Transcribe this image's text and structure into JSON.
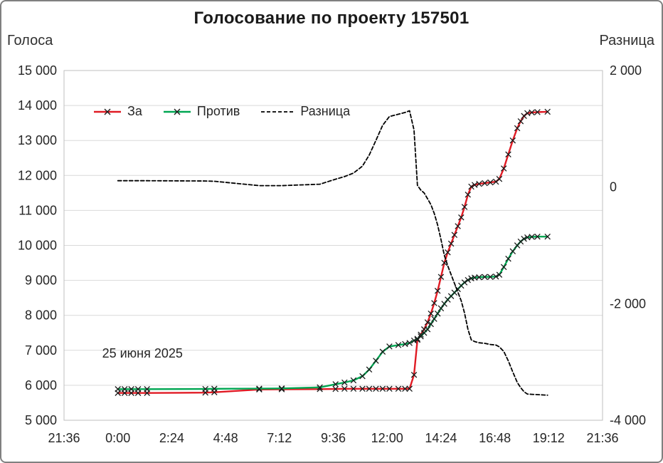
{
  "chart_data": {
    "type": "line",
    "title": "Голосование по проекту 157501",
    "grid": "horizontal",
    "legend_position": "top-inside",
    "x_axis": {
      "range_hours": [
        -2.4,
        21.6
      ],
      "tick_hours": [
        -2.4,
        0,
        2.4,
        4.8,
        7.2,
        9.6,
        12,
        14.4,
        16.8,
        19.2,
        21.6
      ],
      "tick_labels": [
        "21:36",
        "0:00",
        "2:24",
        "4:48",
        "7:12",
        "9:36",
        "12:00",
        "14:24",
        "16:48",
        "19:12",
        "21:36"
      ]
    },
    "left_axis": {
      "title": "Голоса",
      "min": 5000,
      "max": 15000,
      "step": 1000,
      "tick_labels": [
        "15 000",
        "14 000",
        "13 000",
        "12 000",
        "11 000",
        "10 000",
        "9 000",
        "8 000",
        "7 000",
        "6 000",
        "5 000"
      ]
    },
    "right_axis": {
      "title": "Разница",
      "min": -4000,
      "max": 2000,
      "step": 2000,
      "tick_labels": [
        "2 000",
        "0",
        "-2 000",
        "-4 000"
      ]
    },
    "x_hours": [
      0,
      0.3,
      0.6,
      0.9,
      1.3,
      3.9,
      4.3,
      6.3,
      7.3,
      9.0,
      9.7,
      10.1,
      10.5,
      10.9,
      11.2,
      11.5,
      11.8,
      12.1,
      12.5,
      12.8,
      13.0,
      13.2,
      13.35,
      13.5,
      13.65,
      13.8,
      13.95,
      14.1,
      14.25,
      14.4,
      14.55,
      14.7,
      14.85,
      15.0,
      15.15,
      15.3,
      15.45,
      15.6,
      15.75,
      15.9,
      16.1,
      16.35,
      16.6,
      16.85,
      17.0,
      17.2,
      17.4,
      17.6,
      17.8,
      17.95,
      18.1,
      18.25,
      18.45,
      18.7,
      19.15
    ],
    "series": [
      {
        "name": "За",
        "axis": "left",
        "color": "#e01b24",
        "line": "solid",
        "marker": "x",
        "values": [
          5780,
          5780,
          5780,
          5780,
          5780,
          5790,
          5800,
          5880,
          5885,
          5890,
          5895,
          5900,
          5900,
          5900,
          5900,
          5900,
          5900,
          5900,
          5900,
          5900,
          5900,
          6300,
          7300,
          7450,
          7600,
          7800,
          8050,
          8350,
          8700,
          9100,
          9500,
          9800,
          10050,
          10300,
          10550,
          10800,
          11100,
          11450,
          11680,
          11730,
          11760,
          11780,
          11800,
          11820,
          11900,
          12200,
          12600,
          13000,
          13350,
          13550,
          13700,
          13780,
          13800,
          13810,
          13820
        ]
      },
      {
        "name": "Против",
        "axis": "left",
        "color": "#00a652",
        "line": "solid",
        "marker": "x",
        "values": [
          5890,
          5890,
          5890,
          5890,
          5890,
          5895,
          5900,
          5905,
          5910,
          5940,
          6030,
          6080,
          6140,
          6260,
          6450,
          6700,
          6960,
          7110,
          7150,
          7180,
          7210,
          7280,
          7330,
          7400,
          7500,
          7600,
          7750,
          7900,
          8050,
          8200,
          8330,
          8450,
          8550,
          8650,
          8750,
          8850,
          8940,
          9010,
          9060,
          9080,
          9090,
          9100,
          9100,
          9110,
          9160,
          9380,
          9620,
          9830,
          10000,
          10110,
          10190,
          10230,
          10245,
          10250,
          10250
        ]
      },
      {
        "name": "Разница",
        "axis": "right",
        "color": "#000000",
        "line": "dashed",
        "marker": "none",
        "values": [
          110,
          110,
          110,
          110,
          110,
          105,
          100,
          25,
          25,
          50,
          135,
          180,
          240,
          360,
          550,
          800,
          1060,
          1210,
          1250,
          1280,
          1310,
          980,
          30,
          -50,
          -100,
          -200,
          -300,
          -450,
          -650,
          -900,
          -1170,
          -1350,
          -1500,
          -1650,
          -1800,
          -1950,
          -2160,
          -2440,
          -2620,
          -2650,
          -2670,
          -2680,
          -2700,
          -2710,
          -2740,
          -2820,
          -2980,
          -3170,
          -3350,
          -3440,
          -3510,
          -3550,
          -3555,
          -3560,
          -3570
        ]
      }
    ],
    "annotation": {
      "text": "25 июня 2025",
      "x_hours": -0.7,
      "y_left": 6900
    },
    "colors": {
      "grid": "#d9d9d9",
      "plot_border": "#bfbfbf",
      "marker": "#1a1a1a",
      "text": "#262626"
    }
  }
}
